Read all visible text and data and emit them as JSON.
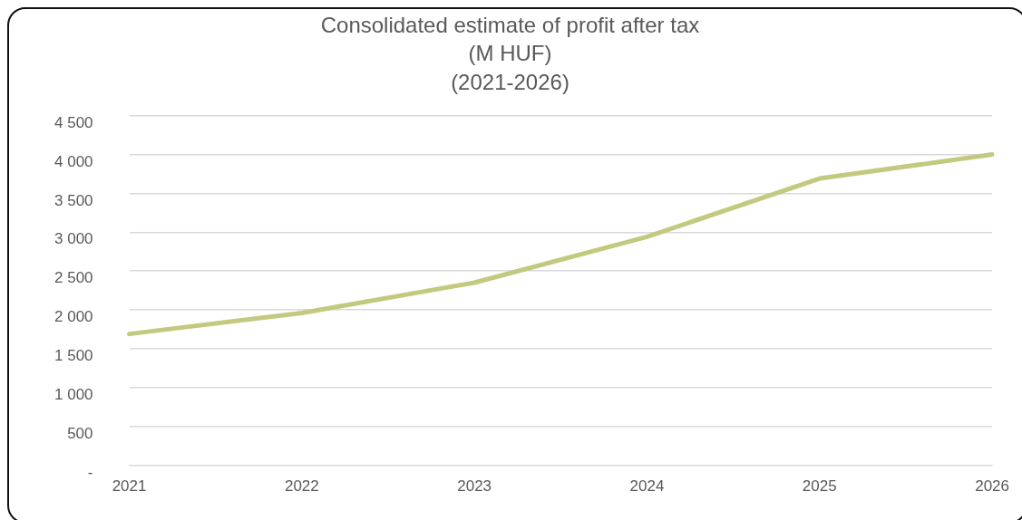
{
  "chart_data": {
    "type": "line",
    "title": "Consolidated estimate of profit after tax\n(M HUF)\n(2021-2026)",
    "categories": [
      "2021",
      "2022",
      "2023",
      "2024",
      "2025",
      "2026"
    ],
    "series": [
      {
        "color": "#c3c97f",
        "values": [
          1690,
          1960,
          2350,
          2940,
          3690,
          4000
        ]
      }
    ],
    "ylim": [
      0,
      4500
    ],
    "yticks": [
      {
        "value": 0,
        "label": "-"
      },
      500,
      {
        "value": 1000,
        "label": "1 000"
      },
      {
        "value": 1500,
        "label": "1 500"
      },
      {
        "value": 2000,
        "label": "2 000"
      },
      {
        "value": 2500,
        "label": "2 500"
      },
      {
        "value": 3000,
        "label": "3 000"
      },
      {
        "value": 3500,
        "label": "3 500"
      },
      {
        "value": 4000,
        "label": "4 000"
      },
      {
        "value": 4500,
        "label": "4 500"
      }
    ],
    "grid": "y",
    "legend": false,
    "marker": "none",
    "line_style": "solid"
  }
}
